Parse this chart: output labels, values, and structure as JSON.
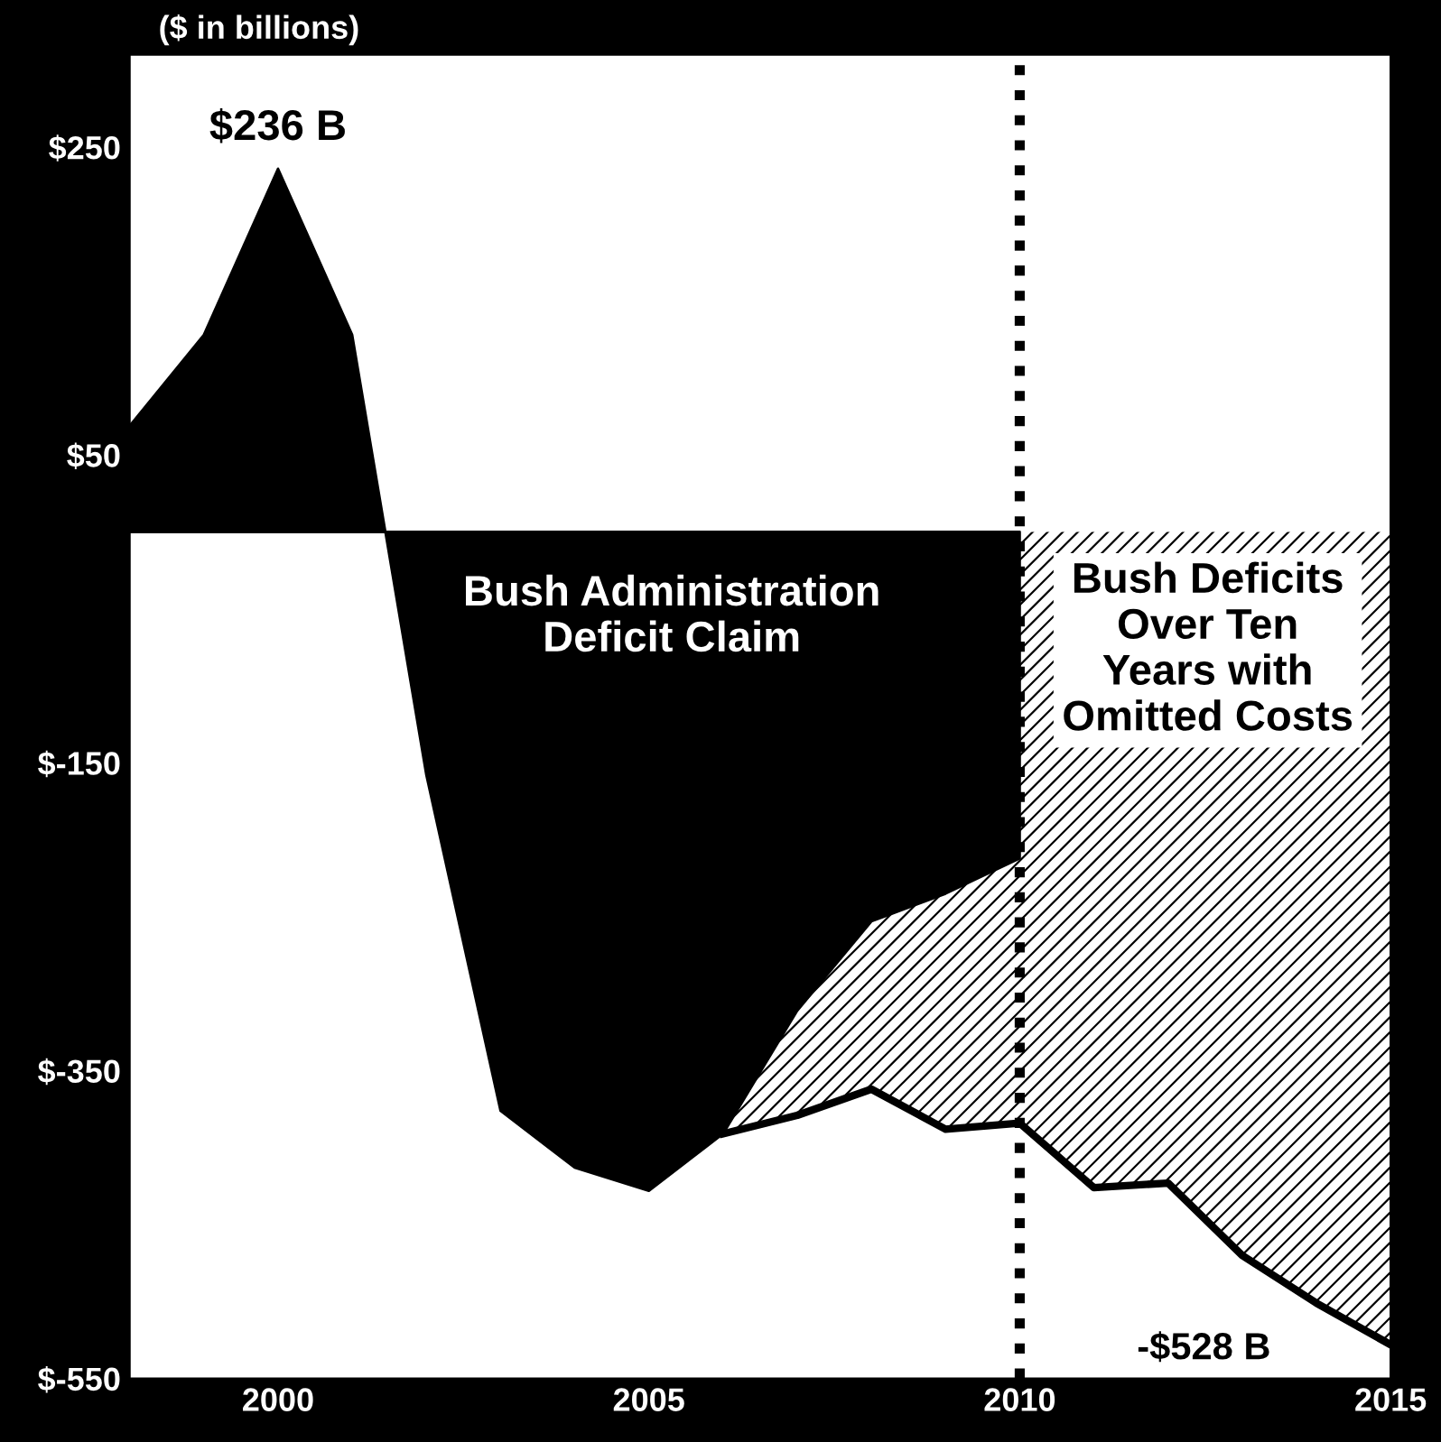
{
  "chart_data": {
    "type": "area",
    "ylabel": "($ in billions)",
    "series": [
      {
        "color": "#000000",
        "x": [
          1998,
          1999,
          2000,
          2001,
          2002,
          2003,
          2004,
          2005,
          2006,
          2007,
          2008,
          2009,
          2010
        ],
        "values": [
          69,
          128,
          236,
          128,
          -158,
          -376,
          -413,
          -428,
          -391,
          -311,
          -253,
          -235,
          -212
        ]
      },
      {
        "color": "#000000",
        "x": [
          2006,
          2007,
          2008,
          2009,
          2010,
          2011,
          2012,
          2013,
          2014,
          2015
        ],
        "values": [
          -391,
          -379,
          -362,
          -388,
          -384,
          -426,
          -423,
          -470,
          -501,
          -528
        ]
      }
    ],
    "xlim": [
      1998,
      2015
    ],
    "xticks": [
      2000,
      2005,
      2010,
      2015
    ],
    "ylim": [
      -550,
      310
    ],
    "yticks": [
      {
        "value": 250,
        "label": "$250"
      },
      {
        "value": 50,
        "label": "$50"
      },
      {
        "value": -150,
        "label": "$-150"
      },
      {
        "value": -350,
        "label": "$-350"
      },
      {
        "value": -550,
        "label": "$-550"
      }
    ],
    "ref_lines": [
      {
        "axis": "x",
        "value": 2010,
        "color": "#000000",
        "line_style": "dotted"
      }
    ],
    "annotations": [
      {
        "text": "$236 B",
        "x": 2000,
        "y": 236
      },
      "-$528 B",
      "Bush Administration\nDeficit Claim",
      "Bush Deficits\nOver Ten\nYears with\nOmitted Costs"
    ],
    "grid": false,
    "legend": false
  }
}
